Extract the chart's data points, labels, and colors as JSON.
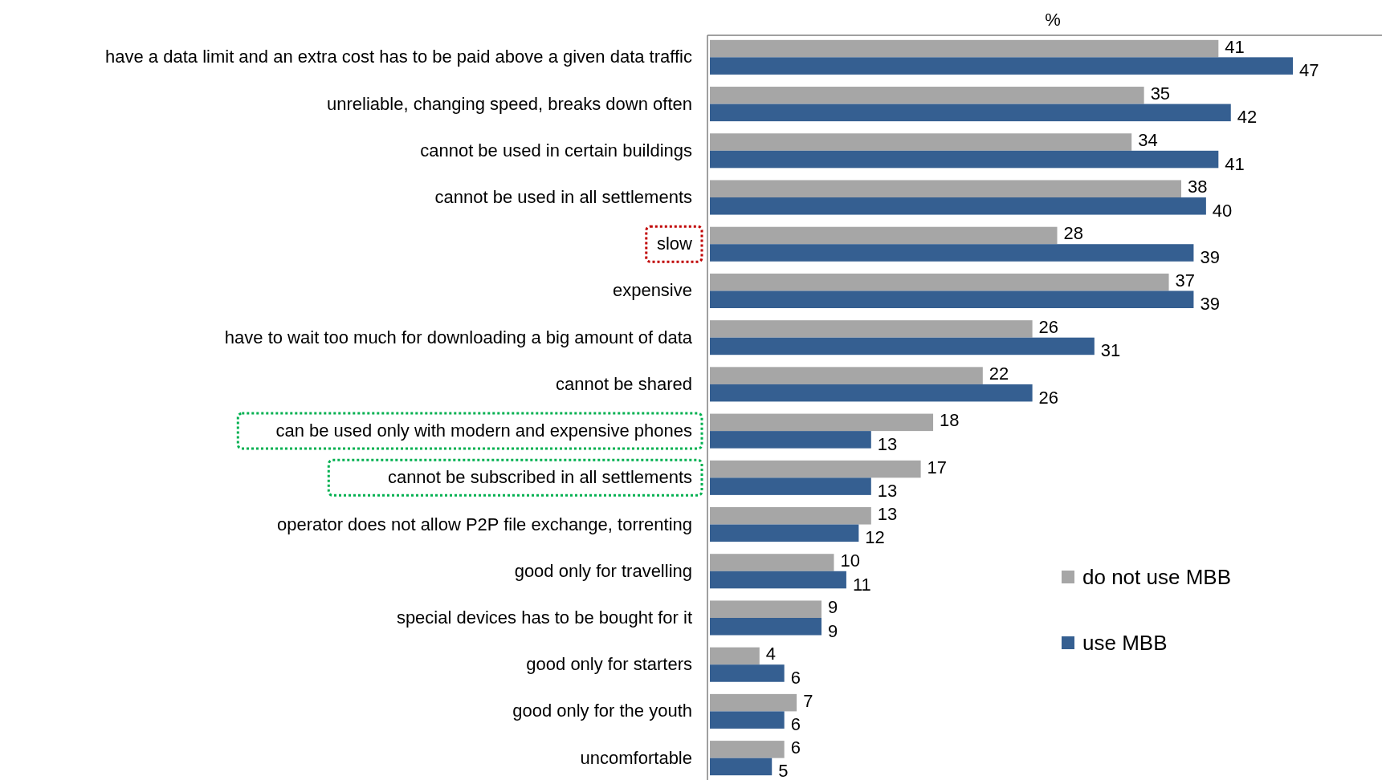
{
  "chart_data": {
    "type": "bar",
    "orientation": "horizontal",
    "xlabel": "%",
    "categories": [
      "have a data limit and an extra cost has to be paid above a given data traffic",
      "unreliable, changing speed, breaks down often",
      "cannot be used in certain buildings",
      "cannot be used in all settlements",
      "slow",
      "expensive",
      "have to wait too much for downloading a big amount of data",
      "cannot be shared",
      "can be used only with modern and expensive phones",
      "cannot be subscribed in all settlements",
      "operator does not allow P2P file exchange, torrenting",
      "good only for travelling",
      "special devices has to be bought for it",
      "good only for starters",
      "good only for the youth",
      "uncomfortable"
    ],
    "series": [
      {
        "name": "do not use MBB",
        "color": "#a6a6a6",
        "values": [
          41,
          35,
          34,
          38,
          28,
          37,
          26,
          22,
          18,
          17,
          13,
          10,
          9,
          4,
          7,
          6
        ]
      },
      {
        "name": "use MBB",
        "color": "#355f91",
        "values": [
          47,
          42,
          41,
          40,
          39,
          39,
          31,
          26,
          13,
          13,
          12,
          11,
          9,
          6,
          6,
          5
        ]
      }
    ],
    "data_labels": true,
    "legend": "right"
  }
}
